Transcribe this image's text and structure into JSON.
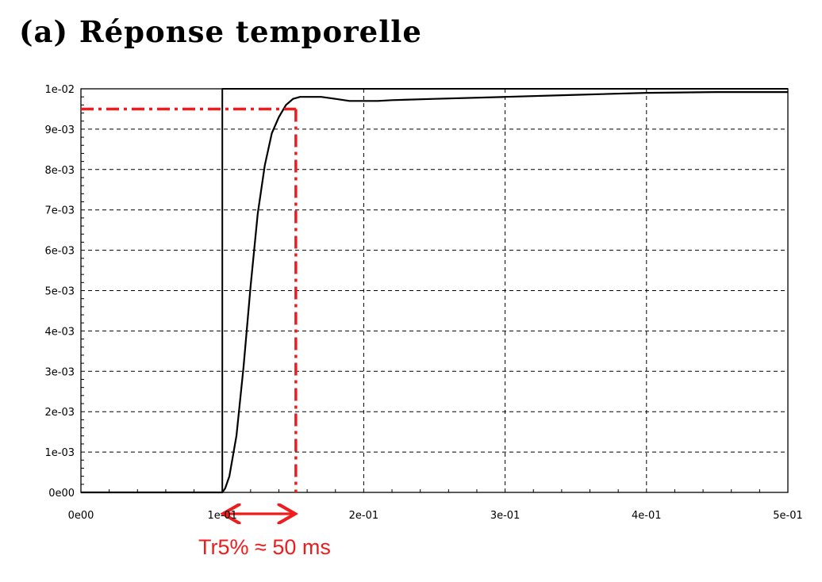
{
  "title": "(a) Réponse temporelle",
  "colors": {
    "grid": "#000000",
    "curve": "#000000",
    "annotation": "#ee1c1c"
  },
  "chart_data": {
    "type": "line",
    "title": "(a) Réponse temporelle",
    "xlabel": "",
    "ylabel": "",
    "xlim": [
      0,
      0.5
    ],
    "ylim": [
      0,
      0.01
    ],
    "grid": true,
    "x_ticks": [
      0,
      0.1,
      0.2,
      0.3,
      0.4,
      0.5
    ],
    "x_tick_labels": [
      "0e00",
      "1e-01",
      "2e-01",
      "3e-01",
      "4e-01",
      "5e-01"
    ],
    "y_ticks": [
      0,
      0.001,
      0.002,
      0.003,
      0.004,
      0.005,
      0.006,
      0.007,
      0.008,
      0.009,
      0.01
    ],
    "y_tick_labels": [
      "0e00",
      "1e-03",
      "2e-03",
      "3e-03",
      "4e-03",
      "5e-03",
      "6e-03",
      "7e-03",
      "8e-03",
      "9e-03",
      "1e-02"
    ],
    "series": [
      {
        "x": [
          0,
          0.1,
          0.1,
          0.5
        ],
        "y": [
          0,
          0,
          0.01,
          0.01
        ]
      },
      {
        "x": [
          0,
          0.1,
          0.102,
          0.105,
          0.11,
          0.115,
          0.12,
          0.125,
          0.13,
          0.135,
          0.14,
          0.145,
          0.15,
          0.155,
          0.16,
          0.17,
          0.18,
          0.19,
          0.2,
          0.21,
          0.22,
          0.25,
          0.3,
          0.35,
          0.4,
          0.45,
          0.5
        ],
        "y": [
          0,
          0,
          0.0001,
          0.0004,
          0.0014,
          0.0031,
          0.0051,
          0.0069,
          0.0081,
          0.0089,
          0.0093,
          0.0096,
          0.00975,
          0.0098,
          0.0098,
          0.0098,
          0.00975,
          0.0097,
          0.0097,
          0.0097,
          0.00972,
          0.00975,
          0.0098,
          0.00985,
          0.0099,
          0.00992,
          0.00992
        ]
      }
    ],
    "annotations": [
      {
        "type": "hline",
        "y": 0.0095,
        "x_from": 0,
        "x_to": 0.152
      },
      {
        "type": "vline",
        "x": 0.152,
        "y_from": 0,
        "y_to": 0.0095
      },
      {
        "type": "double-arrow",
        "x_from": 0.1,
        "x_to": 0.152,
        "y": 0
      },
      {
        "type": "text",
        "text": "Tr5% ≈ 50 ms"
      }
    ]
  }
}
